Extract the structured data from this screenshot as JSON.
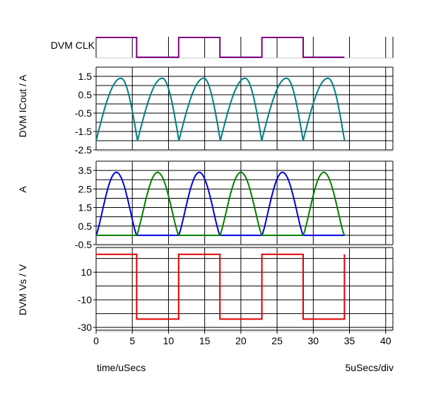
{
  "footer": {
    "xlabel": "time/uSecs",
    "scale": "5uSecs/div"
  },
  "chart_data": [
    {
      "type": "line",
      "title": "",
      "ylabel": "DVM CLK",
      "digital": true,
      "series": [
        {
          "name": "DVM CLK",
          "color": "#800080",
          "x": [
            0,
            5.6,
            5.6,
            11.4,
            11.4,
            17.1,
            17.1,
            22.9,
            22.9,
            28.6,
            28.6,
            34.3
          ],
          "y": [
            1,
            1,
            0,
            0,
            1,
            1,
            0,
            0,
            1,
            1,
            0,
            0
          ]
        }
      ]
    },
    {
      "type": "line",
      "ylabel": "DVM ICout / A",
      "ylim": [
        -2.5,
        2
      ],
      "yticks": [
        "1.5",
        "0.5",
        "-0.5",
        "-1.5",
        "-2.5"
      ],
      "series": [
        {
          "name": "DVM ICout",
          "color": "#008080",
          "waveform": "sawtooth-sine",
          "period": 5.72,
          "cycles": 6,
          "min": -2,
          "max": 1.4
        }
      ]
    },
    {
      "type": "line",
      "ylabel": "A",
      "ylim": [
        -0.5,
        4
      ],
      "yticks": [
        "3.5",
        "2.5",
        "1.5",
        "0.5",
        "-0.5"
      ],
      "series": [
        {
          "name": "blue",
          "color": "#0000e0",
          "waveform": "half-sine",
          "peak": 3.4,
          "pulses": [
            [
              0,
              5.6
            ],
            [
              11.4,
              17.1
            ],
            [
              22.9,
              28.6
            ]
          ],
          "baseline": 0,
          "x_end": 34.3
        },
        {
          "name": "green",
          "color": "#008000",
          "waveform": "half-sine",
          "peak": 3.4,
          "pulses": [
            [
              5.6,
              11.4
            ],
            [
              17.1,
              22.9
            ],
            [
              28.6,
              34.3
            ]
          ],
          "baseline": 0,
          "x_end": 34.3
        }
      ]
    },
    {
      "type": "line",
      "ylabel": "DVM Vs / V",
      "ylim": [
        -32,
        28
      ],
      "yticks": [
        "10",
        "-10",
        "-30"
      ],
      "xlim": [
        0,
        41
      ],
      "xticks": [
        "0",
        "5",
        "10",
        "15",
        "20",
        "25",
        "30",
        "35",
        "40"
      ],
      "series": [
        {
          "name": "DVM Vs",
          "color": "#e00000",
          "x": [
            0,
            5.6,
            5.6,
            11.4,
            11.4,
            17.1,
            17.1,
            22.9,
            22.9,
            28.6,
            28.6,
            34.3,
            34.3
          ],
          "y": [
            23,
            23,
            -24,
            -24,
            23,
            23,
            -24,
            -24,
            23,
            23,
            -24,
            -24,
            23
          ]
        }
      ]
    }
  ]
}
